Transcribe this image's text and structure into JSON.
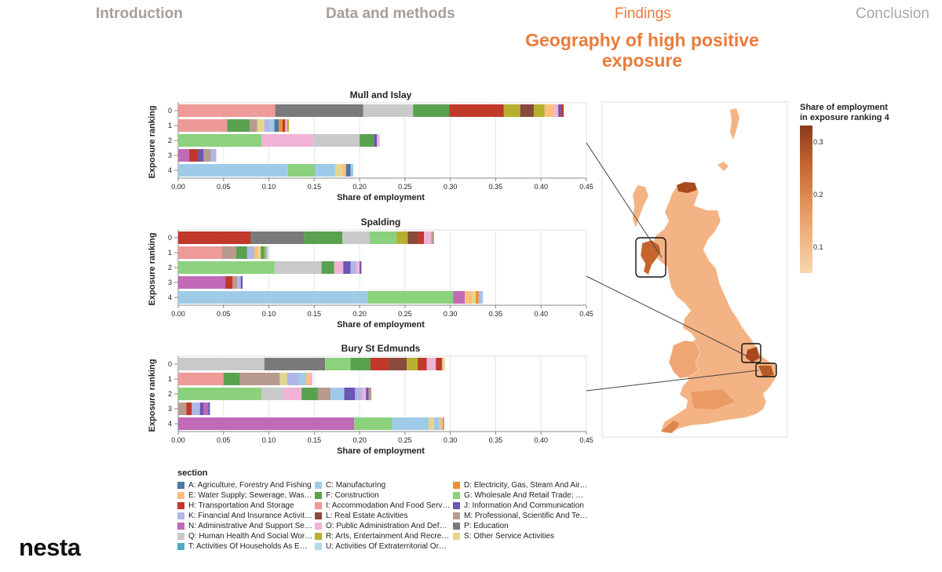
{
  "nav": {
    "introduction": "Introduction",
    "data_methods": "Data and methods",
    "findings": "Findings",
    "conclusion": "Conclusion"
  },
  "page_title": "Geography of high positive exposure",
  "logo": "nesta",
  "colors": {
    "A": "#4e79a7",
    "C": "#a0cbe8",
    "D": "#f28e2b",
    "E": "#ffbe7d",
    "F": "#59a14f",
    "G": "#8cd17d",
    "H": "#c0392b",
    "I": "#ee9a98",
    "J": "#6a56b3",
    "K": "#b0b6e6",
    "L": "#8a4a3c",
    "M": "#b89a8e",
    "N": "#c06ab8",
    "O": "#f0b3d6",
    "P": "#7a7a7a",
    "Q": "#c9c9c9",
    "R": "#b6b02f",
    "S": "#e3d68e",
    "T": "#4aaec2",
    "U": "#b1dbe6"
  },
  "legend": {
    "title": "section",
    "items": [
      {
        "code": "A",
        "label": "A: Agriculture, Forestry And Fishing"
      },
      {
        "code": "C",
        "label": "C: Manufacturing"
      },
      {
        "code": "D",
        "label": "D: Electricity, Gas, Steam And Air…"
      },
      {
        "code": "E",
        "label": "E: Water Supply; Sewerage, Was…"
      },
      {
        "code": "F",
        "label": "F: Construction"
      },
      {
        "code": "G",
        "label": "G: Wholesale And Retail Trade; …"
      },
      {
        "code": "H",
        "label": "H: Transportation And Storage"
      },
      {
        "code": "I",
        "label": "I: Accommodation And Food Serv…"
      },
      {
        "code": "J",
        "label": "J: Information And Communication"
      },
      {
        "code": "K",
        "label": "K: Financial And Insurance Activit…"
      },
      {
        "code": "L",
        "label": "L: Real Estate Activities"
      },
      {
        "code": "M",
        "label": "M: Professional, Scientific And Te…"
      },
      {
        "code": "N",
        "label": "N: Administrative And Support Se…"
      },
      {
        "code": "O",
        "label": "O: Public Administration And Def…"
      },
      {
        "code": "P",
        "label": "P: Education"
      },
      {
        "code": "Q",
        "label": "Q: Human Health And Social Wor…"
      },
      {
        "code": "R",
        "label": "R: Arts, Entertainment And Recre…"
      },
      {
        "code": "S",
        "label": "S: Other Service Activities"
      },
      {
        "code": "T",
        "label": "T: Activities Of Households As E…"
      },
      {
        "code": "U",
        "label": "U: Activities Of Extraterritorial Or…"
      }
    ]
  },
  "map": {
    "colorbar_title_line1": "Share of employment",
    "colorbar_title_line2": "in exposure ranking 4",
    "colorbar_ticks": [
      "0.3",
      "0.2",
      "0.1"
    ],
    "colorbar_values": [
      0.3,
      0.2,
      0.1
    ]
  },
  "chart_data": [
    {
      "type": "bar",
      "title": "Mull and Islay",
      "xlabel": "Share of employment",
      "ylabel": "Exposure ranking",
      "xlim": [
        0,
        0.45
      ],
      "xticks": [
        "0.00",
        "0.05",
        "0.10",
        "0.15",
        "0.20",
        "0.25",
        "0.30",
        "0.35",
        "0.40",
        "0.45"
      ],
      "rows": [
        {
          "rank": "0",
          "segments": [
            [
              "I",
              0.107
            ],
            [
              "P",
              0.097
            ],
            [
              "Q",
              0.055
            ],
            [
              "F",
              0.04
            ],
            [
              "H",
              0.06
            ],
            [
              "R",
              0.018
            ],
            [
              "L",
              0.015
            ],
            [
              "R",
              0.012
            ],
            [
              "E",
              0.01
            ],
            [
              "O",
              0.005
            ],
            [
              "J",
              0.003
            ],
            [
              "H",
              0.003
            ]
          ]
        },
        {
          "rank": "1",
          "segments": [
            [
              "I",
              0.054
            ],
            [
              "F",
              0.025
            ],
            [
              "M",
              0.008
            ],
            [
              "S",
              0.008
            ],
            [
              "K",
              0.006
            ],
            [
              "C",
              0.005
            ],
            [
              "A",
              0.005
            ],
            [
              "D",
              0.004
            ],
            [
              "H",
              0.003
            ],
            [
              "O",
              0.002
            ],
            [
              "R",
              0.002
            ]
          ]
        },
        {
          "rank": "2",
          "segments": [
            [
              "G",
              0.092
            ],
            [
              "O",
              0.057
            ],
            [
              "Q",
              0.051
            ],
            [
              "F",
              0.016
            ],
            [
              "J",
              0.003
            ],
            [
              "O",
              0.003
            ]
          ]
        },
        {
          "rank": "3",
          "segments": [
            [
              "N",
              0.012
            ],
            [
              "H",
              0.01
            ],
            [
              "J",
              0.006
            ],
            [
              "M",
              0.008
            ],
            [
              "K",
              0.006
            ]
          ]
        },
        {
          "rank": "4",
          "segments": [
            [
              "C",
              0.121
            ],
            [
              "G",
              0.03
            ],
            [
              "C",
              0.022
            ],
            [
              "S",
              0.008
            ],
            [
              "E",
              0.004
            ],
            [
              "A",
              0.005
            ],
            [
              "C",
              0.003
            ]
          ]
        }
      ]
    },
    {
      "type": "bar",
      "title": "Spalding",
      "xlabel": "Share of employment",
      "ylabel": "Exposure ranking",
      "xlim": [
        0,
        0.45
      ],
      "xticks": [
        "0.00",
        "0.05",
        "0.10",
        "0.15",
        "0.20",
        "0.25",
        "0.30",
        "0.35",
        "0.40",
        "0.45"
      ],
      "rows": [
        {
          "rank": "0",
          "segments": [
            [
              "H",
              0.08
            ],
            [
              "P",
              0.059
            ],
            [
              "F",
              0.042
            ],
            [
              "Q",
              0.03
            ],
            [
              "G",
              0.03
            ],
            [
              "R",
              0.012
            ],
            [
              "L",
              0.011
            ],
            [
              "H",
              0.007
            ],
            [
              "O",
              0.008
            ],
            [
              "M",
              0.003
            ]
          ]
        },
        {
          "rank": "1",
          "segments": [
            [
              "I",
              0.048
            ],
            [
              "M",
              0.016
            ],
            [
              "F",
              0.012
            ],
            [
              "K",
              0.008
            ],
            [
              "E",
              0.004
            ],
            [
              "S",
              0.003
            ],
            [
              "F",
              0.004
            ],
            [
              "R",
              0.002
            ],
            [
              "C",
              0.002
            ]
          ]
        },
        {
          "rank": "2",
          "segments": [
            [
              "G",
              0.106
            ],
            [
              "Q",
              0.052
            ],
            [
              "F",
              0.014
            ],
            [
              "O",
              0.01
            ],
            [
              "J",
              0.008
            ],
            [
              "K",
              0.006
            ],
            [
              "O",
              0.004
            ],
            [
              "J",
              0.002
            ]
          ]
        },
        {
          "rank": "3",
          "segments": [
            [
              "N",
              0.052
            ],
            [
              "H",
              0.008
            ],
            [
              "M",
              0.005
            ],
            [
              "K",
              0.004
            ],
            [
              "J",
              0.002
            ]
          ]
        },
        {
          "rank": "4",
          "segments": [
            [
              "C",
              0.209
            ],
            [
              "G",
              0.094
            ],
            [
              "N",
              0.013
            ],
            [
              "E",
              0.008
            ],
            [
              "S",
              0.004
            ],
            [
              "D",
              0.003
            ],
            [
              "K",
              0.003
            ],
            [
              "C",
              0.002
            ]
          ]
        }
      ]
    },
    {
      "type": "bar",
      "title": "Bury St Edmunds",
      "xlabel": "Share of employment",
      "ylabel": "Exposure ranking",
      "xlim": [
        0,
        0.45
      ],
      "xticks": [
        "0.00",
        "0.05",
        "0.10",
        "0.15",
        "0.20",
        "0.25",
        "0.30",
        "0.35",
        "0.40",
        "0.45"
      ],
      "rows": [
        {
          "rank": "0",
          "segments": [
            [
              "Q",
              0.095
            ],
            [
              "P",
              0.067
            ],
            [
              "G",
              0.028
            ],
            [
              "F",
              0.022
            ],
            [
              "H",
              0.02
            ],
            [
              "L",
              0.02
            ],
            [
              "R",
              0.012
            ],
            [
              "H",
              0.01
            ],
            [
              "O",
              0.01
            ],
            [
              "H",
              0.007
            ],
            [
              "S",
              0.003
            ]
          ]
        },
        {
          "rank": "1",
          "segments": [
            [
              "I",
              0.05
            ],
            [
              "F",
              0.018
            ],
            [
              "M",
              0.044
            ],
            [
              "S",
              0.008
            ],
            [
              "K",
              0.013
            ],
            [
              "C",
              0.008
            ],
            [
              "E",
              0.004
            ],
            [
              "O",
              0.003
            ]
          ]
        },
        {
          "rank": "2",
          "segments": [
            [
              "G",
              0.092
            ],
            [
              "Q",
              0.024
            ],
            [
              "O",
              0.02
            ],
            [
              "F",
              0.018
            ],
            [
              "M",
              0.014
            ],
            [
              "C",
              0.015
            ],
            [
              "J",
              0.012
            ],
            [
              "K",
              0.008
            ],
            [
              "O",
              0.004
            ],
            [
              "J",
              0.003
            ],
            [
              "M",
              0.003
            ]
          ]
        },
        {
          "rank": "3",
          "segments": [
            [
              "M",
              0.009
            ],
            [
              "H",
              0.006
            ],
            [
              "K",
              0.009
            ],
            [
              "J",
              0.004
            ],
            [
              "N",
              0.005
            ],
            [
              "J",
              0.002
            ]
          ]
        },
        {
          "rank": "4",
          "segments": [
            [
              "N",
              0.194
            ],
            [
              "G",
              0.042
            ],
            [
              "C",
              0.04
            ],
            [
              "S",
              0.006
            ],
            [
              "C",
              0.006
            ],
            [
              "E",
              0.004
            ],
            [
              "A",
              0.001
            ]
          ]
        }
      ]
    }
  ]
}
